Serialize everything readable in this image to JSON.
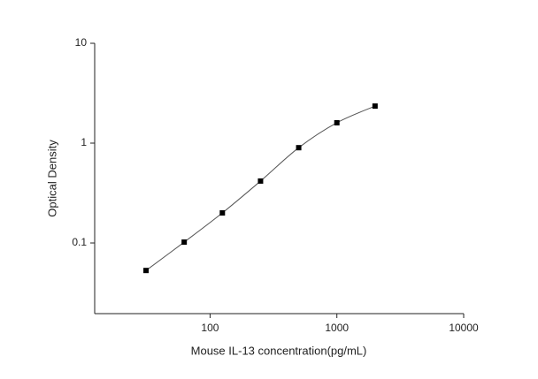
{
  "chart_data": {
    "type": "scatter",
    "x_label": "Mouse IL-13 concentration(pg/mL)",
    "y_label": "Optical Density",
    "x": [
      31.25,
      62.5,
      125,
      250,
      500,
      1000,
      2000
    ],
    "series": [
      {
        "color": "#000000",
        "values": [
          0.053,
          0.102,
          0.2,
          0.417,
          0.9,
          1.6,
          2.35
        ]
      }
    ],
    "xlim": [
      12.3,
      10000
    ],
    "ylim": [
      0.0196,
      10
    ],
    "xticks": [
      100,
      1000,
      10000
    ],
    "yticks": [
      0.1,
      1,
      10
    ],
    "xlog": true,
    "ylog": true,
    "fit_line": true,
    "line_color": "#555555"
  }
}
